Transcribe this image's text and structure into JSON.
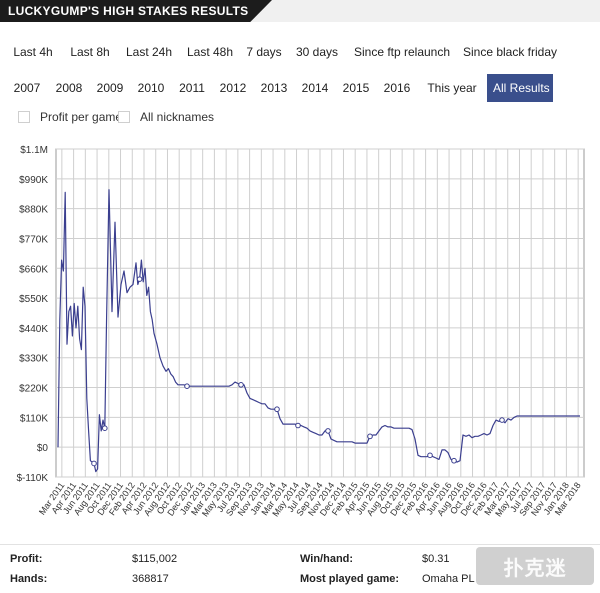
{
  "header": {
    "title": "LUCKYGUMP'S HIGH STAKES RESULTS"
  },
  "filters": {
    "row1": [
      "Last 4h",
      "Last 8h",
      "Last 24h",
      "Last 48h",
      "7 days",
      "30 days",
      "Since ftp relaunch",
      "Since black friday"
    ],
    "row2": [
      "2007",
      "2008",
      "2009",
      "2010",
      "2011",
      "2012",
      "2013",
      "2014",
      "2015",
      "2016",
      "This year",
      "All Results"
    ],
    "active": "All Results"
  },
  "options": {
    "profit_per_game": "Profit per game",
    "all_nicknames": "All nicknames"
  },
  "chart_data": {
    "type": "line",
    "title": "",
    "xlabel": "",
    "ylabel": "",
    "y_tick_labels": [
      "$1.1M",
      "$990K",
      "$880K",
      "$770K",
      "$660K",
      "$550K",
      "$440K",
      "$330K",
      "$220K",
      "$110K",
      "$0",
      "$-110K"
    ],
    "ylim": [
      -110000,
      1100000
    ],
    "x_tick_labels": [
      "Mar 2011",
      "Apr 2011",
      "Jun 2011",
      "Aug 2011",
      "Oct 2011",
      "Dec 2011",
      "Feb 2012",
      "Apr 2012",
      "Jun 2012",
      "Aug 2012",
      "Oct 2012",
      "Dec 2012",
      "Jan 2013",
      "Mar 2013",
      "May 2013",
      "Jul 2013",
      "Sep 2013",
      "Nov 2013",
      "Jan 2014",
      "Mar 2014",
      "May 2014",
      "Jul 2014",
      "Sep 2014",
      "Nov 2014",
      "Dec 2014",
      "Feb 2015",
      "Apr 2015",
      "Jun 2015",
      "Aug 2015",
      "Oct 2015",
      "Dec 2015",
      "Feb 2016",
      "Apr 2016",
      "Jun 2016",
      "Aug 2016",
      "Oct 2016",
      "Dec 2016",
      "Feb 2017",
      "Mar 2017",
      "May 2017",
      "Jul 2017",
      "Sep 2017",
      "Nov 2017",
      "Jan 2018",
      "Mar 2018"
    ],
    "grid": true,
    "series": [
      {
        "color": "#3b3f8f",
        "x": [
          0,
          0.3,
          0.6,
          0.9,
          1.2,
          1.5,
          1.8,
          2.1,
          2.4,
          2.7,
          3.0,
          3.3,
          3.6,
          3.9,
          4.2,
          4.5,
          4.8,
          5.1,
          5.4,
          5.7,
          6.0,
          6.3,
          6.6,
          6.9,
          7.2,
          7.5,
          7.8,
          8.1,
          8.5,
          9,
          9.5,
          10,
          10.5,
          11,
          11.5,
          12,
          12.5,
          13,
          13.3,
          13.6,
          13.9,
          14.2,
          14.5,
          14.8,
          15.1,
          15.4,
          15.7,
          16,
          16.5,
          17,
          17.5,
          18,
          18.4,
          18.8,
          19.2,
          19.6,
          20,
          20.5,
          21,
          21.5,
          22,
          22.5,
          23,
          23.5,
          24,
          24.5,
          25,
          25.5,
          26,
          26.5,
          27,
          27.5,
          28,
          28.5,
          29,
          29.5,
          30,
          30.5,
          31,
          31.5,
          32,
          32.5,
          33,
          33.5,
          34,
          34.5,
          35,
          35.5,
          36,
          36.5,
          37,
          37.5,
          38,
          38.5,
          39,
          39.5,
          40,
          40.5,
          41,
          41.5,
          42,
          42.5,
          43,
          43.5,
          44,
          44.5,
          45,
          45.5,
          46,
          46.5,
          47,
          47.5,
          48,
          48.5,
          49,
          49.5,
          50,
          50.5,
          51,
          51.5,
          52,
          52.5,
          53,
          53.5,
          54,
          54.5,
          55,
          55.5,
          56,
          56.5,
          57,
          57.5,
          58,
          58.5,
          59,
          59.5,
          60,
          60.5,
          61,
          61.5,
          62,
          62.5,
          63,
          63.5,
          64,
          64.5,
          65,
          65.5,
          66,
          66.5,
          67,
          67.5,
          68,
          68.5,
          69,
          69.5,
          70,
          70.5,
          71,
          71.5,
          72,
          72.5,
          73,
          73.5,
          74,
          74.5,
          75,
          75.5,
          76,
          76.5,
          77,
          77.5,
          78,
          78.5,
          79,
          79.5,
          80,
          80.5,
          81,
          81.5,
          82,
          82.5,
          83,
          83.5,
          84,
          84.5,
          85,
          85.5,
          86,
          86.5,
          87
        ],
        "values": [
          0,
          470000,
          690000,
          650000,
          940000,
          380000,
          500000,
          520000,
          410000,
          530000,
          440000,
          520000,
          400000,
          360000,
          590000,
          520000,
          180000,
          60000,
          -50000,
          -55000,
          -60000,
          -90000,
          -80000,
          120000,
          60000,
          100000,
          70000,
          480000,
          950000,
          500000,
          830000,
          480000,
          600000,
          650000,
          570000,
          590000,
          600000,
          680000,
          600000,
          620000,
          690000,
          610000,
          660000,
          560000,
          590000,
          500000,
          470000,
          420000,
          380000,
          330000,
          300000,
          280000,
          290000,
          270000,
          260000,
          240000,
          230000,
          230000,
          230000,
          225000,
          225000,
          225000,
          225000,
          225000,
          225000,
          225000,
          225000,
          225000,
          225000,
          225000,
          225000,
          225000,
          225000,
          225000,
          230000,
          240000,
          235000,
          230000,
          230000,
          200000,
          180000,
          175000,
          170000,
          165000,
          160000,
          160000,
          145000,
          140000,
          140000,
          140000,
          105000,
          85000,
          85000,
          85000,
          85000,
          85000,
          80000,
          80000,
          75000,
          70000,
          60000,
          55000,
          50000,
          45000,
          45000,
          60000,
          60000,
          30000,
          25000,
          20000,
          20000,
          20000,
          20000,
          20000,
          20000,
          15000,
          15000,
          15000,
          15000,
          15000,
          40000,
          45000,
          45000,
          60000,
          75000,
          80000,
          75000,
          75000,
          70000,
          70000,
          70000,
          70000,
          70000,
          70000,
          65000,
          30000,
          -30000,
          -35000,
          -35000,
          -35000,
          -30000,
          -35000,
          -40000,
          -45000,
          -10000,
          -10000,
          -20000,
          -45000,
          -50000,
          -55000,
          -50000,
          45000,
          40000,
          45000,
          35000,
          40000,
          40000,
          45000,
          50000,
          45000,
          50000,
          80000,
          100000,
          95000,
          100000,
          90000,
          105000,
          100000,
          110000,
          115002,
          115002,
          115002,
          115002,
          115002,
          115002,
          115002,
          115002,
          115002,
          115002,
          115002,
          115002,
          115002,
          115002,
          115002,
          115002,
          115002,
          115002,
          115002,
          115002,
          115002,
          115002
        ]
      }
    ]
  },
  "stats": {
    "profit_label": "Profit:",
    "profit_value": "$115,002",
    "hands_label": "Hands:",
    "hands_value": "368817",
    "winhand_label": "Win/hand:",
    "winhand_value": "$0.31",
    "game_label": "Most played game:",
    "game_value": "Omaha PL"
  },
  "watermark": {
    "text": "扑克迷"
  }
}
